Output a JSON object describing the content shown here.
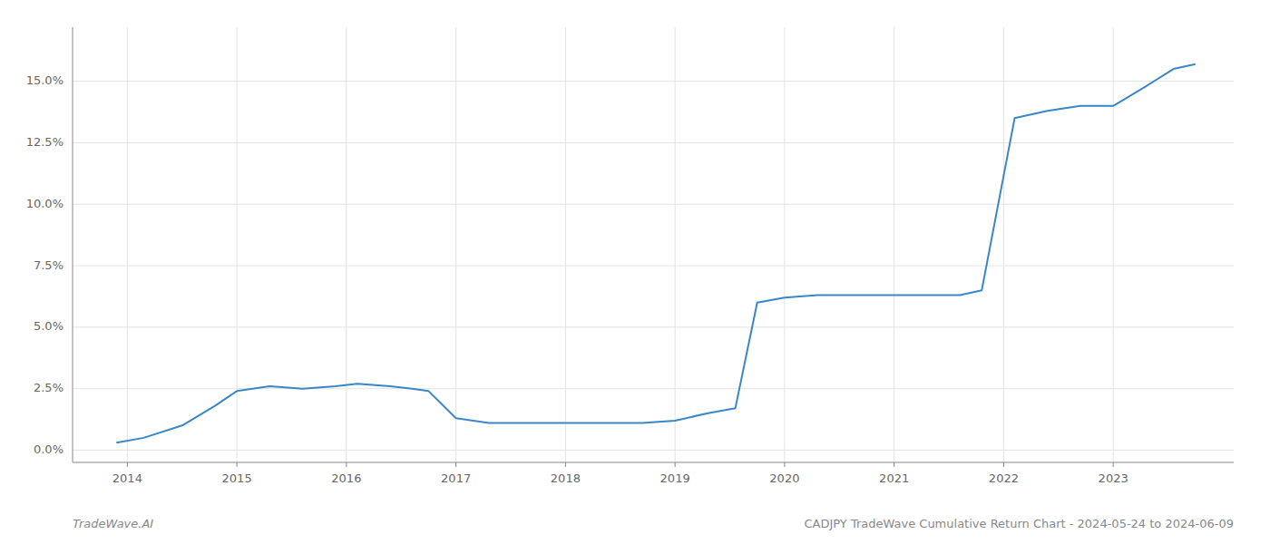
{
  "chart_data": {
    "type": "line",
    "annotations": [
      "TradeWave.AI",
      "CADJPY TradeWave Cumulative Return Chart - 2024-05-24 to 2024-06-09"
    ],
    "x": [
      2013.9,
      2014.15,
      2014.5,
      2014.8,
      2015.0,
      2015.3,
      2015.6,
      2015.9,
      2016.1,
      2016.4,
      2016.6,
      2016.75,
      2017.0,
      2017.3,
      2017.5,
      2017.7,
      2018.0,
      2018.3,
      2018.7,
      2019.0,
      2019.3,
      2019.55,
      2019.75,
      2020.0,
      2020.3,
      2020.6,
      2021.0,
      2021.4,
      2021.6,
      2021.8,
      2022.1,
      2022.4,
      2022.7,
      2023.0,
      2023.3,
      2023.55,
      2023.75
    ],
    "values": [
      0.003,
      0.005,
      0.01,
      0.018,
      0.024,
      0.026,
      0.025,
      0.026,
      0.027,
      0.026,
      0.025,
      0.024,
      0.013,
      0.011,
      0.011,
      0.011,
      0.011,
      0.011,
      0.011,
      0.012,
      0.015,
      0.017,
      0.06,
      0.062,
      0.063,
      0.063,
      0.063,
      0.063,
      0.063,
      0.065,
      0.135,
      0.138,
      0.14,
      0.14,
      0.148,
      0.155,
      0.157
    ],
    "color": "#3a87c8",
    "xlim": [
      2013.5,
      2024.1
    ],
    "ylim": [
      -0.005,
      0.172
    ],
    "xticks": [
      2014,
      2015,
      2016,
      2017,
      2018,
      2019,
      2020,
      2021,
      2022,
      2023
    ],
    "yticks": [
      {
        "value": 0.0,
        "label": "0.0%"
      },
      {
        "value": 0.025,
        "label": "2.5%"
      },
      {
        "value": 0.05,
        "label": "5.0%"
      },
      {
        "value": 0.075,
        "label": "7.5%"
      },
      {
        "value": 0.1,
        "label": "10.0%"
      },
      {
        "value": 0.125,
        "label": "12.5%"
      },
      {
        "value": 0.15,
        "label": "15.0%"
      }
    ],
    "grid": true
  }
}
